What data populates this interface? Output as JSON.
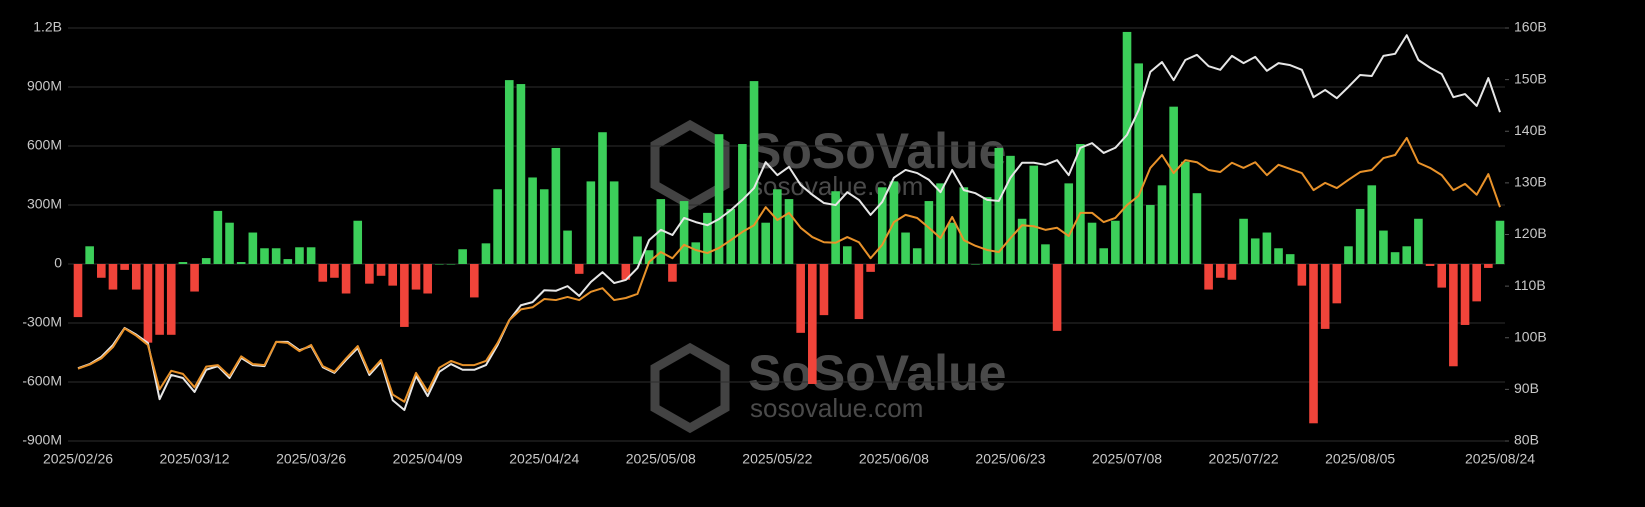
{
  "chart_data": {
    "type": "bar",
    "watermark": "SoSoValue",
    "watermark_url": "sosovalue.com",
    "categories": [
      "2025/02/26",
      null,
      null,
      null,
      null,
      null,
      null,
      null,
      null,
      null,
      "2025/03/12",
      null,
      null,
      null,
      null,
      null,
      null,
      null,
      null,
      null,
      "2025/03/26",
      null,
      null,
      null,
      null,
      null,
      null,
      null,
      null,
      null,
      "2025/04/09",
      null,
      null,
      null,
      null,
      null,
      null,
      null,
      null,
      null,
      "2025/04/24",
      null,
      null,
      null,
      null,
      null,
      null,
      null,
      null,
      null,
      "2025/05/08",
      null,
      null,
      null,
      null,
      null,
      null,
      null,
      null,
      null,
      "2025/05/22",
      null,
      null,
      null,
      null,
      null,
      null,
      null,
      null,
      null,
      "2025/06/08",
      null,
      null,
      null,
      null,
      null,
      null,
      null,
      null,
      null,
      "2025/06/23",
      null,
      null,
      null,
      null,
      null,
      null,
      null,
      null,
      null,
      "2025/07/08",
      null,
      null,
      null,
      null,
      null,
      null,
      null,
      null,
      null,
      "2025/07/22",
      null,
      null,
      null,
      null,
      null,
      null,
      null,
      null,
      null,
      "2025/08/05",
      null,
      null,
      null,
      null,
      null,
      null,
      null,
      null,
      null,
      null,
      null,
      "2025/08/24"
    ],
    "ylim": [
      -900,
      1200
    ],
    "yticks": [
      {
        "value": -900,
        "label": "-900M"
      },
      {
        "value": -600,
        "label": "-600M"
      },
      {
        "value": -300,
        "label": "-300M"
      },
      0,
      {
        "value": 300,
        "label": "300M"
      },
      {
        "value": 600,
        "label": "600M"
      },
      {
        "value": 900,
        "label": "900M"
      },
      {
        "value": 1200,
        "label": "1.2B"
      }
    ],
    "y2lim": [
      80,
      160
    ],
    "y2ticks": [
      {
        "value": 80,
        "label": "80B"
      },
      {
        "value": 90,
        "label": "90B"
      },
      {
        "value": 100,
        "label": "100B"
      },
      {
        "value": 110,
        "label": "110B"
      },
      {
        "value": 120,
        "label": "120B"
      },
      {
        "value": 130,
        "label": "130B"
      },
      {
        "value": 140,
        "label": "140B"
      },
      {
        "value": 150,
        "label": "150B"
      },
      {
        "value": 160,
        "label": "160B"
      }
    ],
    "grid": true,
    "series": [
      {
        "type": "bar",
        "color_up": "#3ccf5a",
        "color_down": "#f0443a",
        "values": [
          -270,
          90,
          -70,
          -130,
          -30,
          -130,
          -400,
          -360,
          -360,
          10,
          -140,
          30,
          270,
          210,
          10,
          160,
          80,
          80,
          25,
          85,
          85,
          -90,
          -70,
          -150,
          220,
          -100,
          -60,
          -110,
          -320,
          -130,
          -150,
          0,
          0,
          75,
          -170,
          105,
          380,
          935,
          915,
          440,
          380,
          590,
          170,
          -50,
          420,
          670,
          420,
          -80,
          140,
          70,
          330,
          -90,
          320,
          110,
          260,
          660,
          280,
          610,
          930,
          210,
          380,
          330,
          -350,
          -610,
          -260,
          370,
          90,
          -280,
          -40,
          390,
          420,
          160,
          80,
          320,
          410,
          210,
          390,
          0,
          340,
          590,
          550,
          230,
          500,
          100,
          -340,
          410,
          610,
          210,
          80,
          220,
          1180,
          1020,
          300,
          400,
          800,
          520,
          360,
          -130,
          -70,
          -80,
          230,
          130,
          160,
          80,
          50,
          -110,
          -810,
          -330,
          -200,
          90,
          280,
          400,
          170,
          60,
          90,
          230,
          -10,
          -120,
          -520,
          -310,
          -190,
          -20,
          220
        ]
      },
      {
        "type": "line",
        "axis": "y2",
        "color": "#e6e6e6",
        "values": [
          94.1,
          94.9,
          96.3,
          98.6,
          101.9,
          100.6,
          99.0,
          88.1,
          92.8,
          92.2,
          89.5,
          93.8,
          94.5,
          92.2,
          96.1,
          94.7,
          94.5,
          99.2,
          99.2,
          97.6,
          98.4,
          94.3,
          93.2,
          95.7,
          98.0,
          92.8,
          95.3,
          87.9,
          86.0,
          92.6,
          88.7,
          93.4,
          94.9,
          93.8,
          93.8,
          94.7,
          98.6,
          103.4,
          106.3,
          106.9,
          109.2,
          109.1,
          110.0,
          108.1,
          110.8,
          112.7,
          110.6,
          111.2,
          113.5,
          118.9,
          120.9,
          119.9,
          123.2,
          122.4,
          121.8,
          123.0,
          124.7,
          126.7,
          129.0,
          134.0,
          131.5,
          133.1,
          129.6,
          127.7,
          126.1,
          125.7,
          128.2,
          126.7,
          123.8,
          126.3,
          131.0,
          132.5,
          131.9,
          130.6,
          128.2,
          132.5,
          128.6,
          128.0,
          126.7,
          126.5,
          131.0,
          133.9,
          133.9,
          133.5,
          134.4,
          131.5,
          136.8,
          137.7,
          135.8,
          136.8,
          139.3,
          144.1,
          151.5,
          153.4,
          149.9,
          153.8,
          154.8,
          152.6,
          151.9,
          154.6,
          153.2,
          154.4,
          151.7,
          153.2,
          152.8,
          151.9,
          146.6,
          148.0,
          146.4,
          148.6,
          150.9,
          150.7,
          154.6,
          155.0,
          158.6,
          153.8,
          152.3,
          151.1,
          146.6,
          147.2,
          144.9,
          150.3,
          143.7
        ]
      },
      {
        "type": "line",
        "axis": "y2",
        "color": "#e8922a",
        "values": [
          94.0,
          94.8,
          96.0,
          98.2,
          101.8,
          100.4,
          98.6,
          90.0,
          93.6,
          93.0,
          90.4,
          94.4,
          94.7,
          92.6,
          96.4,
          94.9,
          94.7,
          99.2,
          99.0,
          97.4,
          98.6,
          94.5,
          93.4,
          96.0,
          98.4,
          93.2,
          95.7,
          89.0,
          87.6,
          93.2,
          89.6,
          94.2,
          95.5,
          94.7,
          94.7,
          95.5,
          99.0,
          103.4,
          105.5,
          105.9,
          107.5,
          107.3,
          107.9,
          107.3,
          108.9,
          109.6,
          107.3,
          107.7,
          108.5,
          114.7,
          116.6,
          115.4,
          118.0,
          117.0,
          116.4,
          117.4,
          118.9,
          120.5,
          121.8,
          125.3,
          122.8,
          124.2,
          121.3,
          119.5,
          118.5,
          118.4,
          119.5,
          118.5,
          115.4,
          118.0,
          122.4,
          123.8,
          123.2,
          121.3,
          119.3,
          123.4,
          118.9,
          117.8,
          117.0,
          116.6,
          119.3,
          121.8,
          121.6,
          120.9,
          121.3,
          119.7,
          124.2,
          124.2,
          122.4,
          123.2,
          125.7,
          127.5,
          132.9,
          135.4,
          131.9,
          134.4,
          134.0,
          132.5,
          132.1,
          133.9,
          132.9,
          134.0,
          131.5,
          133.5,
          132.7,
          131.9,
          128.6,
          130.0,
          129.0,
          130.6,
          132.1,
          132.5,
          134.8,
          135.4,
          138.7,
          133.9,
          132.9,
          131.5,
          128.6,
          129.8,
          127.7,
          131.7,
          125.3
        ]
      }
    ]
  }
}
